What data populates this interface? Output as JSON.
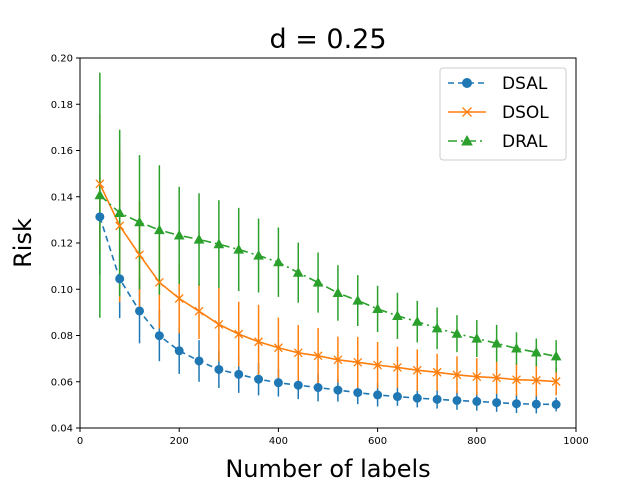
{
  "chart_data": {
    "type": "line",
    "title": "d = 0.25",
    "xlabel": "Number of labels",
    "ylabel": "Risk",
    "xlim": [
      0,
      1000
    ],
    "ylim": [
      0.04,
      0.2
    ],
    "xticks": [
      0,
      200,
      400,
      600,
      800,
      1000
    ],
    "xtick_labels": [
      "0",
      "200",
      "400",
      "600",
      "800",
      "1000"
    ],
    "yticks": [
      0.04,
      0.06,
      0.08,
      0.1,
      0.12,
      0.14,
      0.16,
      0.18,
      0.2
    ],
    "ytick_labels": [
      "0.04",
      "0.06",
      "0.08",
      "0.10",
      "0.12",
      "0.14",
      "0.16",
      "0.18",
      "0.20"
    ],
    "grid": false,
    "legend_position": "top-right",
    "x": [
      40,
      80,
      120,
      160,
      200,
      240,
      280,
      320,
      360,
      400,
      440,
      480,
      520,
      560,
      600,
      640,
      680,
      720,
      760,
      800,
      840,
      880,
      920,
      960
    ],
    "series": [
      {
        "name": "DSAL",
        "color": "#1f77b4",
        "line_style": "dashed",
        "marker": "circle",
        "values": [
          0.1313,
          0.1045,
          0.0906,
          0.0799,
          0.0734,
          0.069,
          0.0653,
          0.0632,
          0.0611,
          0.0596,
          0.0585,
          0.0575,
          0.0564,
          0.0553,
          0.0543,
          0.0536,
          0.0529,
          0.0524,
          0.0519,
          0.0515,
          0.051,
          0.0505,
          0.0503,
          0.0502
        ],
        "error": [
          0.025,
          0.017,
          0.014,
          0.011,
          0.01,
          0.009,
          0.008,
          0.008,
          0.007,
          0.006,
          0.006,
          0.006,
          0.005,
          0.005,
          0.005,
          0.004,
          0.004,
          0.004,
          0.004,
          0.004,
          0.004,
          0.004,
          0.004,
          0.003
        ]
      },
      {
        "name": "DSOL",
        "color": "#ff7f0e",
        "line_style": "solid",
        "marker": "x",
        "values": [
          0.1456,
          0.1274,
          0.1149,
          0.103,
          0.096,
          0.0905,
          0.0848,
          0.0806,
          0.0773,
          0.0747,
          0.0725,
          0.0712,
          0.0695,
          0.0684,
          0.0672,
          0.0662,
          0.065,
          0.0641,
          0.063,
          0.0622,
          0.0617,
          0.0609,
          0.0606,
          0.0601
        ],
        "error": [
          0.03,
          0.033,
          0.023,
          0.02,
          0.015,
          0.012,
          0.016,
          0.014,
          0.016,
          0.013,
          0.012,
          0.012,
          0.01,
          0.011,
          0.01,
          0.009,
          0.009,
          0.008,
          0.008,
          0.008,
          0.007,
          0.007,
          0.007,
          0.006
        ]
      },
      {
        "name": "DRAL",
        "color": "#2ca02c",
        "line_style": "dashdot",
        "marker": "triangle",
        "values": [
          0.1407,
          0.133,
          0.129,
          0.1256,
          0.1233,
          0.1215,
          0.1195,
          0.1172,
          0.1146,
          0.1117,
          0.1072,
          0.1029,
          0.0984,
          0.0951,
          0.0915,
          0.0885,
          0.086,
          0.0831,
          0.0808,
          0.0787,
          0.0766,
          0.0744,
          0.0727,
          0.071
        ],
        "error": [
          0.053,
          0.036,
          0.029,
          0.028,
          0.021,
          0.02,
          0.019,
          0.018,
          0.016,
          0.015,
          0.013,
          0.013,
          0.012,
          0.011,
          0.01,
          0.01,
          0.009,
          0.009,
          0.008,
          0.008,
          0.008,
          0.007,
          0.006,
          0.007
        ]
      }
    ]
  }
}
